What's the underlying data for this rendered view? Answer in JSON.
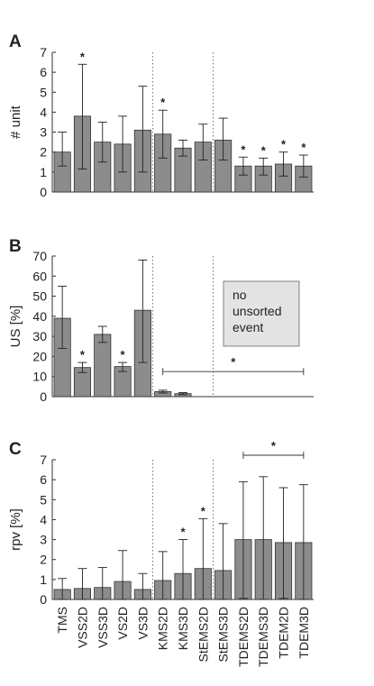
{
  "categories": [
    "TMS",
    "VSS2D",
    "VSS3D",
    "VS2D",
    "VS3D",
    "KMS2D",
    "KMS3D",
    "StEMS2D",
    "StEMS3D",
    "TDEMS2D",
    "TDEMS3D",
    "TDEM2D",
    "TDEM3D"
  ],
  "colors": {
    "bar": "#8c8c8c",
    "bar_edge": "#333333",
    "note_box": "#e3e3e3"
  },
  "chart_data": [
    {
      "panel": "A",
      "type": "bar",
      "ylabel": "# unit",
      "ylim": [
        0,
        7
      ],
      "yticks": [
        "0",
        "1",
        "2",
        "3",
        "4",
        "5",
        "6",
        "7"
      ],
      "values": [
        2.0,
        3.8,
        2.5,
        2.4,
        3.1,
        2.9,
        2.2,
        2.5,
        2.6,
        1.3,
        1.3,
        1.4,
        1.3
      ],
      "error_low": [
        1.3,
        1.15,
        1.5,
        1.0,
        1.0,
        1.7,
        1.8,
        1.6,
        1.6,
        0.85,
        0.85,
        0.8,
        0.75
      ],
      "error_high": [
        3.0,
        6.4,
        3.5,
        3.8,
        5.3,
        4.1,
        2.6,
        3.4,
        3.7,
        1.75,
        1.7,
        2.0,
        1.85
      ],
      "significance_marker": "*",
      "significant": [
        false,
        true,
        false,
        false,
        false,
        true,
        false,
        false,
        false,
        true,
        true,
        true,
        true
      ]
    },
    {
      "panel": "B",
      "type": "bar",
      "ylabel": "US [%]",
      "ylim": [
        0,
        70
      ],
      "yticks": [
        "0",
        "10",
        "20",
        "30",
        "40",
        "50",
        "60",
        "70"
      ],
      "values": [
        39,
        14.5,
        31,
        15,
        43,
        2.5,
        1.5,
        0,
        0,
        0,
        0,
        0,
        0
      ],
      "error_low": [
        24,
        12,
        27,
        12.5,
        17,
        1.8,
        1.0,
        0,
        0,
        0,
        0,
        0,
        0
      ],
      "error_high": [
        55,
        17,
        35,
        17,
        68,
        3.2,
        2.0,
        0,
        0,
        0,
        0,
        0,
        0
      ],
      "significance_marker": "*",
      "significant": [
        false,
        true,
        false,
        true,
        false,
        false,
        false,
        false,
        false,
        false,
        false,
        false,
        false
      ],
      "bracket": {
        "from": 5,
        "to": 12,
        "marker": "*"
      },
      "annotation": "no\nunsorted\nevent"
    },
    {
      "panel": "C",
      "type": "bar",
      "ylabel": "rpv [%]",
      "ylim": [
        0,
        7
      ],
      "yticks": [
        "0",
        "1",
        "2",
        "3",
        "4",
        "5",
        "6",
        "7"
      ],
      "values": [
        0.5,
        0.55,
        0.6,
        0.9,
        0.5,
        0.95,
        1.3,
        1.55,
        1.45,
        3.0,
        3.0,
        2.85,
        2.85
      ],
      "error_low": [
        0.0,
        0.0,
        0.0,
        0.0,
        0.0,
        0.0,
        0.0,
        0.0,
        0.0,
        0.05,
        0.0,
        0.05,
        0.0
      ],
      "error_high": [
        1.05,
        1.55,
        1.6,
        2.45,
        1.3,
        2.4,
        3.0,
        4.05,
        3.8,
        5.9,
        6.15,
        5.6,
        5.75
      ],
      "significance_marker": "*",
      "significant": [
        false,
        false,
        false,
        false,
        false,
        false,
        true,
        true,
        false,
        false,
        false,
        false,
        false
      ],
      "bracket": {
        "from": 9,
        "to": 12,
        "marker": "*"
      }
    }
  ]
}
